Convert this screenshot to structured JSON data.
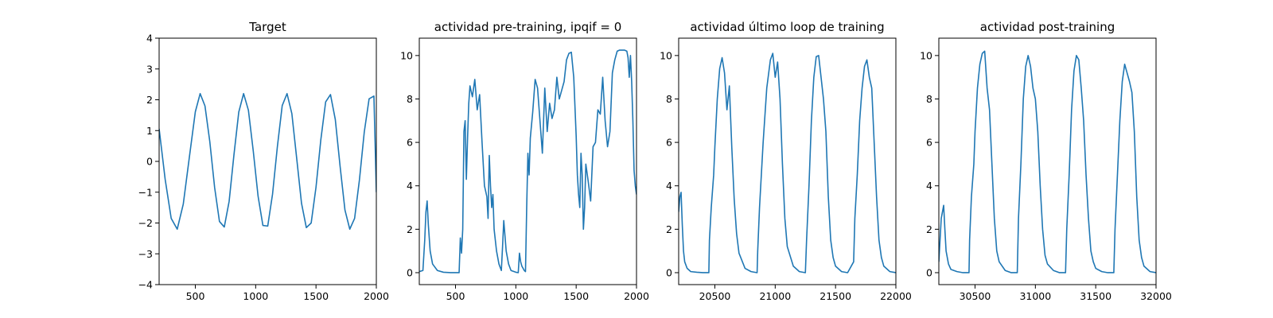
{
  "figure": {
    "background": "#ffffff",
    "line_color": "#1f77b4"
  },
  "chart_data": [
    {
      "type": "line",
      "title": "Target",
      "xlabel": "",
      "ylabel": "",
      "xlim": [
        200,
        2000
      ],
      "ylim": [
        -4,
        4
      ],
      "xticks": [
        500,
        1000,
        1500,
        2000
      ],
      "yticks": [
        -4,
        -3,
        -2,
        -1,
        0,
        1,
        2,
        3,
        4
      ],
      "grid": false,
      "series": [
        {
          "x": [
            200,
            250,
            300,
            350,
            400,
            450,
            500,
            540,
            580,
            620,
            660,
            700,
            740,
            780,
            820,
            860,
            900,
            940,
            980,
            1020,
            1060,
            1100,
            1140,
            1180,
            1220,
            1260,
            1300,
            1340,
            1380,
            1420,
            1460,
            1500,
            1540,
            1580,
            1620,
            1660,
            1700,
            1740,
            1780,
            1820,
            1860,
            1900,
            1940,
            1980,
            2000
          ],
          "y": [
            1.06,
            -0.58,
            -1.85,
            -2.2,
            -1.39,
            0.12,
            1.61,
            2.2,
            1.8,
            0.64,
            -0.85,
            -1.95,
            -2.13,
            -1.3,
            0.21,
            1.6,
            2.2,
            1.66,
            0.34,
            -1.13,
            -2.08,
            -2.1,
            -1.06,
            0.48,
            1.81,
            2.2,
            1.55,
            0.1,
            -1.36,
            -2.15,
            -2.0,
            -0.84,
            0.7,
            1.93,
            2.17,
            1.36,
            -0.17,
            -1.58,
            -2.2,
            -1.85,
            -0.6,
            0.95,
            2.03,
            2.12,
            -1.0
          ]
        }
      ]
    },
    {
      "type": "line",
      "title": "actividad pre-training, ipqif = 0",
      "xlabel": "",
      "ylabel": "",
      "xlim": [
        200,
        2000
      ],
      "ylim": [
        -0.55,
        10.8
      ],
      "xticks": [
        500,
        1000,
        1500,
        2000
      ],
      "yticks": [
        0,
        2,
        4,
        6,
        8,
        10
      ],
      "grid": false,
      "series": [
        {
          "x": [
            200,
            230,
            245,
            255,
            265,
            275,
            290,
            310,
            350,
            400,
            460,
            530,
            540,
            550,
            560,
            570,
            580,
            590,
            600,
            610,
            620,
            640,
            660,
            680,
            700,
            720,
            740,
            760,
            770,
            780,
            790,
            800,
            810,
            820,
            840,
            860,
            880,
            890,
            900,
            920,
            940,
            960,
            1000,
            1020,
            1030,
            1040,
            1050,
            1060,
            1070,
            1080,
            1090,
            1100,
            1110,
            1120,
            1140,
            1160,
            1180,
            1200,
            1220,
            1240,
            1260,
            1280,
            1300,
            1320,
            1340,
            1360,
            1380,
            1400,
            1420,
            1440,
            1460,
            1480,
            1500,
            1510,
            1520,
            1530,
            1540,
            1550,
            1560,
            1570,
            1580,
            1600,
            1620,
            1640,
            1660,
            1680,
            1700,
            1720,
            1740,
            1760,
            1780,
            1800,
            1820,
            1840,
            1860,
            1880,
            1900,
            1920,
            1930,
            1940,
            1950,
            1960,
            1970,
            1980,
            1990,
            2000
          ],
          "y": [
            0.05,
            0.1,
            1.5,
            2.8,
            3.3,
            2.2,
            1.0,
            0.4,
            0.1,
            0.02,
            0.0,
            0.0,
            1.6,
            0.9,
            2.0,
            6.5,
            7.0,
            4.3,
            6.2,
            7.8,
            8.6,
            8.1,
            8.9,
            7.5,
            8.2,
            6.0,
            4.0,
            3.5,
            2.5,
            5.4,
            4.0,
            3.0,
            3.6,
            2.0,
            1.0,
            0.4,
            0.1,
            1.2,
            2.4,
            1.0,
            0.4,
            0.1,
            0.02,
            0.0,
            0.9,
            0.5,
            0.3,
            0.2,
            0.1,
            0.05,
            3.0,
            5.5,
            4.5,
            6.2,
            7.4,
            8.9,
            8.5,
            7.0,
            5.5,
            8.5,
            6.5,
            7.8,
            7.1,
            7.5,
            9.0,
            8.0,
            8.4,
            8.8,
            9.8,
            10.1,
            10.15,
            9.0,
            6.3,
            4.5,
            3.6,
            3.0,
            5.5,
            4.5,
            2.0,
            3.0,
            5.0,
            4.2,
            3.3,
            5.8,
            6.0,
            7.5,
            7.3,
            9.0,
            7.0,
            5.8,
            6.5,
            9.2,
            9.8,
            10.2,
            10.25,
            10.25,
            10.25,
            10.2,
            9.9,
            9.0,
            10.0,
            8.8,
            7.0,
            4.7,
            4.0,
            3.6
          ]
        }
      ]
    },
    {
      "type": "line",
      "title": "actividad último loop de training",
      "xlabel": "",
      "ylabel": "",
      "xlim": [
        20200,
        22000
      ],
      "ylim": [
        -0.55,
        10.8
      ],
      "xticks": [
        20500,
        21000,
        21500,
        22000
      ],
      "yticks": [
        0,
        2,
        4,
        6,
        8,
        10
      ],
      "grid": false,
      "series": [
        {
          "x": [
            20200,
            20210,
            20220,
            20230,
            20240,
            20250,
            20270,
            20300,
            20350,
            20400,
            20450,
            20455,
            20470,
            20490,
            20500,
            20520,
            20540,
            20560,
            20580,
            20600,
            20620,
            20640,
            20660,
            20680,
            20700,
            20750,
            20800,
            20850,
            20855,
            20870,
            20900,
            20930,
            20960,
            20980,
            21000,
            21020,
            21040,
            21060,
            21080,
            21100,
            21150,
            21200,
            21250,
            21260,
            21280,
            21300,
            21320,
            21340,
            21360,
            21380,
            21400,
            21420,
            21440,
            21460,
            21480,
            21500,
            21550,
            21600,
            21650,
            21660,
            21680,
            21700,
            21720,
            21740,
            21760,
            21780,
            21800,
            21820,
            21840,
            21860,
            21880,
            21900,
            21950,
            22000
          ],
          "y": [
            2.8,
            3.5,
            3.7,
            2.2,
            1.0,
            0.5,
            0.2,
            0.05,
            0.02,
            0.0,
            0.0,
            1.5,
            3.0,
            4.5,
            5.8,
            8.0,
            9.4,
            9.9,
            9.2,
            7.5,
            8.6,
            5.8,
            3.4,
            1.8,
            0.9,
            0.2,
            0.05,
            0.0,
            1.0,
            3.0,
            6.0,
            8.5,
            9.8,
            10.1,
            9.0,
            9.7,
            8.0,
            5.0,
            2.5,
            1.2,
            0.3,
            0.05,
            0.0,
            1.5,
            4.0,
            7.0,
            9.0,
            9.95,
            10.0,
            9.0,
            8.0,
            6.5,
            3.5,
            1.5,
            0.7,
            0.3,
            0.05,
            0.0,
            0.5,
            2.5,
            4.5,
            7.0,
            8.5,
            9.5,
            9.8,
            9.0,
            8.5,
            6.0,
            3.5,
            1.5,
            0.7,
            0.3,
            0.05,
            0.0
          ]
        }
      ]
    },
    {
      "type": "line",
      "title": "actividad post-training",
      "xlabel": "",
      "ylabel": "",
      "xlim": [
        30200,
        32000
      ],
      "ylim": [
        -0.55,
        10.8
      ],
      "xticks": [
        30500,
        31000,
        31500,
        32000
      ],
      "yticks": [
        0,
        2,
        4,
        6,
        8,
        10
      ],
      "grid": false,
      "series": [
        {
          "x": [
            30200,
            30220,
            30240,
            30250,
            30260,
            30280,
            30300,
            30350,
            30400,
            30450,
            30455,
            30470,
            30490,
            30500,
            30520,
            30540,
            30560,
            30580,
            30600,
            30620,
            30640,
            30660,
            30680,
            30700,
            30750,
            30800,
            30850,
            30860,
            30880,
            30900,
            30920,
            30940,
            30960,
            30980,
            31000,
            31020,
            31040,
            31060,
            31080,
            31100,
            31150,
            31200,
            31250,
            31260,
            31280,
            31300,
            31320,
            31340,
            31360,
            31380,
            31400,
            31420,
            31440,
            31460,
            31480,
            31500,
            31550,
            31600,
            31650,
            31660,
            31680,
            31700,
            31720,
            31740,
            31760,
            31780,
            31800,
            31820,
            31840,
            31860,
            31880,
            31900,
            31950,
            32000
          ],
          "y": [
            0.5,
            2.5,
            3.1,
            2.0,
            1.0,
            0.4,
            0.15,
            0.05,
            0.0,
            0.0,
            1.5,
            3.5,
            5.0,
            6.5,
            8.5,
            9.6,
            10.1,
            10.2,
            8.5,
            7.5,
            5.0,
            2.5,
            1.0,
            0.5,
            0.1,
            0.0,
            0.0,
            2.5,
            5.0,
            8.0,
            9.5,
            10.0,
            9.5,
            8.5,
            8.0,
            6.5,
            4.0,
            2.0,
            0.8,
            0.4,
            0.1,
            0.0,
            0.0,
            2.0,
            4.5,
            7.5,
            9.3,
            10.0,
            9.8,
            8.5,
            7.0,
            4.5,
            2.5,
            1.0,
            0.5,
            0.2,
            0.05,
            0.0,
            0.0,
            2.0,
            4.5,
            7.0,
            8.8,
            9.6,
            9.2,
            8.8,
            8.3,
            6.5,
            3.5,
            1.5,
            0.7,
            0.3,
            0.05,
            0.0
          ]
        }
      ]
    }
  ]
}
